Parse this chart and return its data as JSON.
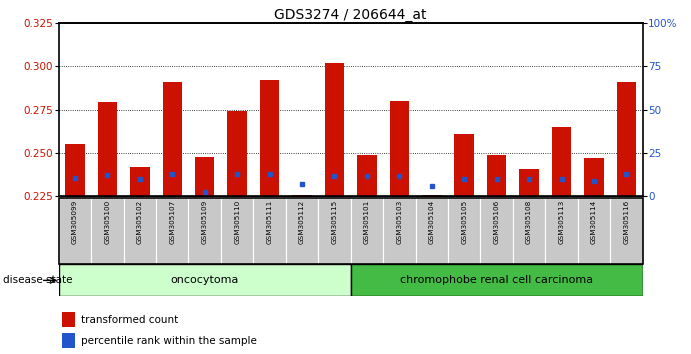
{
  "title": "GDS3274 / 206644_at",
  "samples": [
    "GSM305099",
    "GSM305100",
    "GSM305102",
    "GSM305107",
    "GSM305109",
    "GSM305110",
    "GSM305111",
    "GSM305112",
    "GSM305115",
    "GSM305101",
    "GSM305103",
    "GSM305104",
    "GSM305105",
    "GSM305106",
    "GSM305108",
    "GSM305113",
    "GSM305114",
    "GSM305116"
  ],
  "red_values": [
    0.2555,
    0.2795,
    0.242,
    0.291,
    0.248,
    0.274,
    0.292,
    0.226,
    0.302,
    0.249,
    0.28,
    0.226,
    0.261,
    0.249,
    0.241,
    0.265,
    0.247,
    0.291
  ],
  "blue_values": [
    0.2355,
    0.2375,
    0.235,
    0.238,
    0.2275,
    0.238,
    0.238,
    0.232,
    0.237,
    0.237,
    0.237,
    0.231,
    0.235,
    0.235,
    0.235,
    0.235,
    0.234,
    0.238
  ],
  "ylim_left": [
    0.225,
    0.325
  ],
  "ylim_right": [
    0,
    100
  ],
  "yticks_left": [
    0.225,
    0.25,
    0.275,
    0.3,
    0.325
  ],
  "yticks_right": [
    0,
    25,
    50,
    75,
    100
  ],
  "ytick_labels_right": [
    "0",
    "25",
    "50",
    "75",
    "100%"
  ],
  "bar_color": "#cc1100",
  "blue_color": "#2255cc",
  "group1_label": "oncocytoma",
  "group2_label": "chromophobe renal cell carcinoma",
  "group1_count": 9,
  "group2_count": 9,
  "group1_bg": "#ccffcc",
  "group2_bg": "#44bb44",
  "disease_state_label": "disease state",
  "legend1": "transformed count",
  "legend2": "percentile rank within the sample",
  "bar_color_red": "#cc1100",
  "label_box_color": "#c8c8c8",
  "bar_width": 0.6,
  "title_fontsize": 10,
  "tick_label_color_left": "#cc1100",
  "tick_label_color_right": "#2255cc"
}
